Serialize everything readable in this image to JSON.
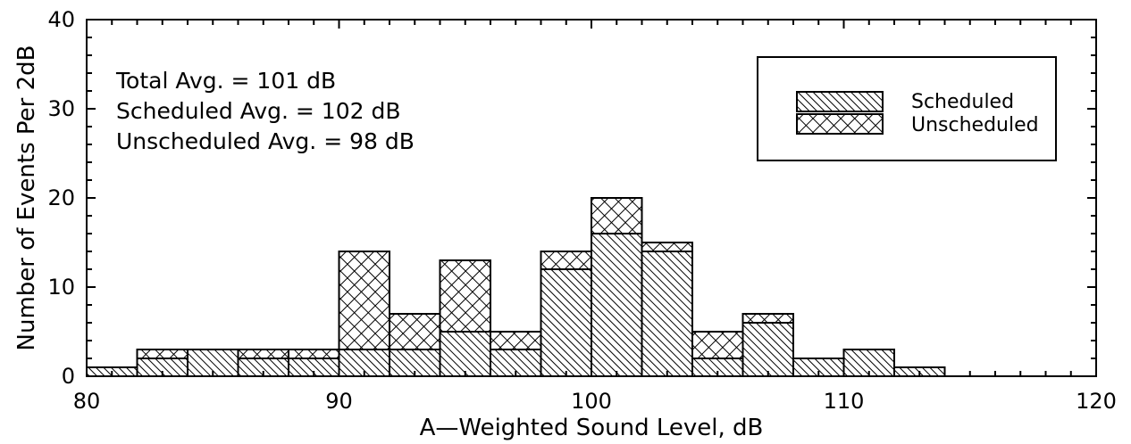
{
  "chart_data": {
    "type": "bar",
    "stacked": true,
    "xlabel": "A—Weighted Sound Level, dB",
    "ylabel": "Number of Events Per 2dB",
    "xlim": [
      80,
      120
    ],
    "ylim": [
      0,
      40
    ],
    "xticks": [
      80,
      90,
      100,
      110,
      120
    ],
    "yticks": [
      0,
      10,
      20,
      30,
      40
    ],
    "bin_width": 2,
    "bins": [
      80,
      82,
      84,
      86,
      88,
      90,
      92,
      94,
      96,
      98,
      100,
      102,
      104,
      106,
      108,
      110,
      112
    ],
    "series": [
      {
        "name": "Scheduled",
        "pattern": "diagonal-hatch",
        "values": [
          1,
          2,
          3,
          2,
          2,
          3,
          3,
          5,
          3,
          12,
          16,
          14,
          2,
          6,
          2,
          3,
          1
        ]
      },
      {
        "name": "Unscheduled",
        "pattern": "cross-hatch",
        "values": [
          0,
          1,
          0,
          1,
          1,
          11,
          4,
          8,
          2,
          2,
          4,
          1,
          3,
          1,
          0,
          0,
          0
        ]
      }
    ],
    "annotations": [
      "Total Avg. = 101 dB",
      "Scheduled Avg. = 102 dB",
      "Unscheduled Avg. = 98 dB"
    ],
    "legend": {
      "placement": "top-right",
      "entries": [
        "Scheduled",
        "Unscheduled"
      ]
    },
    "grid": false
  }
}
